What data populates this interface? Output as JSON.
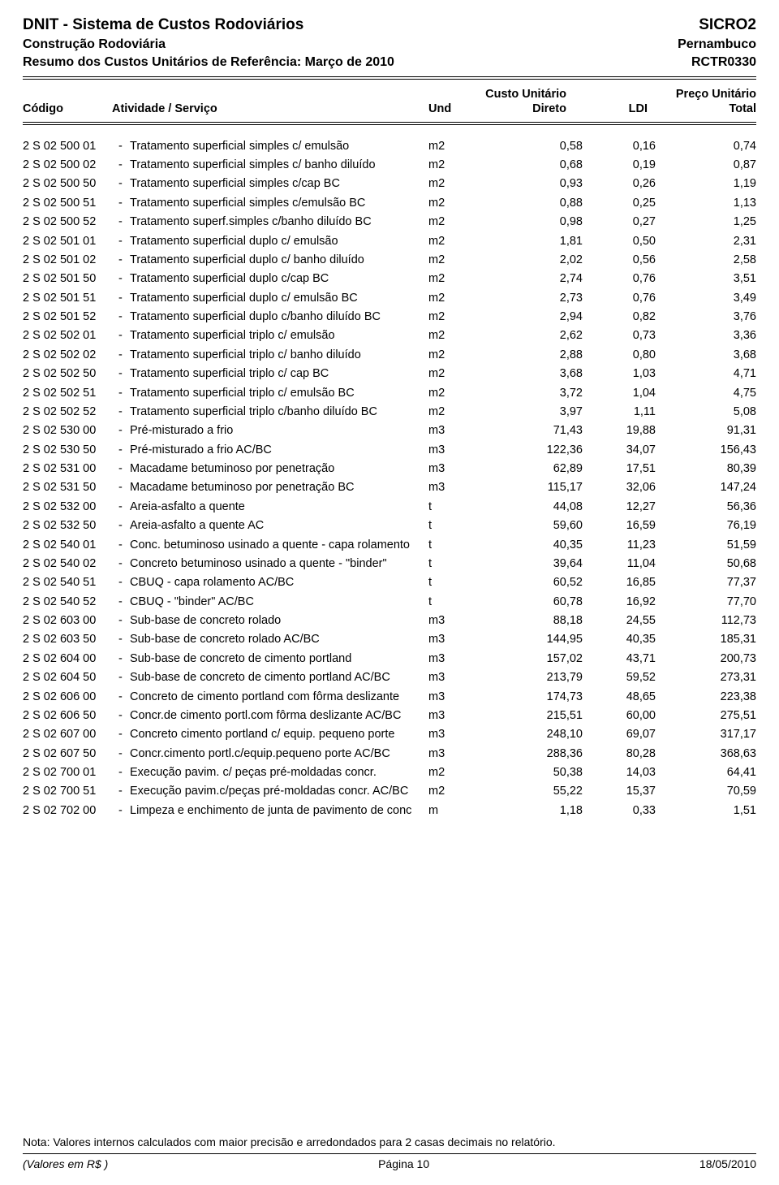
{
  "header": {
    "title_left": "DNIT - Sistema de Custos Rodoviários",
    "title_right": "SICRO2",
    "sub1_left": "Construção Rodoviária",
    "sub1_right": "Pernambuco",
    "sub2_left": "Resumo dos Custos Unitários de Referência: Março de 2010",
    "sub2_right": "RCTR0330"
  },
  "columns": {
    "custo_unitario": "Custo Unitário",
    "preco_unitario": "Preço Unitário",
    "codigo": "Código",
    "atividade": "Atividade / Serviço",
    "und": "Und",
    "direto": "Direto",
    "ldi": "LDI",
    "total": "Total"
  },
  "rows": [
    {
      "codigo": "2 S 02 500 01",
      "desc": "Tratamento superficial simples c/ emulsão",
      "und": "m2",
      "direto": "0,58",
      "ldi": "0,16",
      "total": "0,74"
    },
    {
      "codigo": "2 S 02 500 02",
      "desc": "Tratamento superficial simples c/ banho diluído",
      "und": "m2",
      "direto": "0,68",
      "ldi": "0,19",
      "total": "0,87"
    },
    {
      "codigo": "2 S 02 500 50",
      "desc": "Tratamento superficial simples c/cap BC",
      "und": "m2",
      "direto": "0,93",
      "ldi": "0,26",
      "total": "1,19"
    },
    {
      "codigo": "2 S 02 500 51",
      "desc": "Tratamento superficial simples c/emulsão BC",
      "und": "m2",
      "direto": "0,88",
      "ldi": "0,25",
      "total": "1,13"
    },
    {
      "codigo": "2 S 02 500 52",
      "desc": "Tratamento superf.simples c/banho diluído BC",
      "und": "m2",
      "direto": "0,98",
      "ldi": "0,27",
      "total": "1,25"
    },
    {
      "codigo": "2 S 02 501 01",
      "desc": "Tratamento superficial duplo c/ emulsão",
      "und": "m2",
      "direto": "1,81",
      "ldi": "0,50",
      "total": "2,31"
    },
    {
      "codigo": "2 S 02 501 02",
      "desc": "Tratamento superficial duplo c/ banho diluído",
      "und": "m2",
      "direto": "2,02",
      "ldi": "0,56",
      "total": "2,58"
    },
    {
      "codigo": "2 S 02 501 50",
      "desc": "Tratamento superficial duplo c/cap BC",
      "und": "m2",
      "direto": "2,74",
      "ldi": "0,76",
      "total": "3,51"
    },
    {
      "codigo": "2 S 02 501 51",
      "desc": "Tratamento superficial duplo c/ emulsão BC",
      "und": "m2",
      "direto": "2,73",
      "ldi": "0,76",
      "total": "3,49"
    },
    {
      "codigo": "2 S 02 501 52",
      "desc": "Tratamento superficial duplo c/banho diluído BC",
      "und": "m2",
      "direto": "2,94",
      "ldi": "0,82",
      "total": "3,76"
    },
    {
      "codigo": "2 S 02 502 01",
      "desc": "Tratamento superficial triplo c/ emulsão",
      "und": "m2",
      "direto": "2,62",
      "ldi": "0,73",
      "total": "3,36"
    },
    {
      "codigo": "2 S 02 502 02",
      "desc": "Tratamento superficial triplo c/ banho diluído",
      "und": "m2",
      "direto": "2,88",
      "ldi": "0,80",
      "total": "3,68"
    },
    {
      "codigo": "2 S 02 502 50",
      "desc": "Tratamento superficial triplo c/ cap BC",
      "und": "m2",
      "direto": "3,68",
      "ldi": "1,03",
      "total": "4,71"
    },
    {
      "codigo": "2 S 02 502 51",
      "desc": "Tratamento superficial triplo c/ emulsão BC",
      "und": "m2",
      "direto": "3,72",
      "ldi": "1,04",
      "total": "4,75"
    },
    {
      "codigo": "2 S 02 502 52",
      "desc": "Tratamento superficial triplo c/banho diluído BC",
      "und": "m2",
      "direto": "3,97",
      "ldi": "1,11",
      "total": "5,08"
    },
    {
      "codigo": "2 S 02 530 00",
      "desc": "Pré-misturado a frio",
      "und": "m3",
      "direto": "71,43",
      "ldi": "19,88",
      "total": "91,31"
    },
    {
      "codigo": "2 S 02 530 50",
      "desc": "Pré-misturado a frio AC/BC",
      "und": "m3",
      "direto": "122,36",
      "ldi": "34,07",
      "total": "156,43"
    },
    {
      "codigo": "2 S 02 531 00",
      "desc": "Macadame betuminoso por penetração",
      "und": "m3",
      "direto": "62,89",
      "ldi": "17,51",
      "total": "80,39"
    },
    {
      "codigo": "2 S 02 531 50",
      "desc": "Macadame betuminoso por penetração BC",
      "und": "m3",
      "direto": "115,17",
      "ldi": "32,06",
      "total": "147,24"
    },
    {
      "codigo": "2 S 02 532 00",
      "desc": "Areia-asfalto a quente",
      "und": "t",
      "direto": "44,08",
      "ldi": "12,27",
      "total": "56,36"
    },
    {
      "codigo": "2 S 02 532 50",
      "desc": "Areia-asfalto a quente AC",
      "und": "t",
      "direto": "59,60",
      "ldi": "16,59",
      "total": "76,19"
    },
    {
      "codigo": "2 S 02 540 01",
      "desc": "Conc. betuminoso usinado a quente - capa rolamento",
      "und": "t",
      "direto": "40,35",
      "ldi": "11,23",
      "total": "51,59"
    },
    {
      "codigo": "2 S 02 540 02",
      "desc": "Concreto betuminoso usinado a quente - \"binder\"",
      "und": "t",
      "direto": "39,64",
      "ldi": "11,04",
      "total": "50,68"
    },
    {
      "codigo": "2 S 02 540 51",
      "desc": "CBUQ - capa rolamento AC/BC",
      "und": "t",
      "direto": "60,52",
      "ldi": "16,85",
      "total": "77,37"
    },
    {
      "codigo": "2 S 02 540 52",
      "desc": "CBUQ - \"binder\" AC/BC",
      "und": "t",
      "direto": "60,78",
      "ldi": "16,92",
      "total": "77,70"
    },
    {
      "codigo": "2 S 02 603 00",
      "desc": "Sub-base de concreto rolado",
      "und": "m3",
      "direto": "88,18",
      "ldi": "24,55",
      "total": "112,73"
    },
    {
      "codigo": "2 S 02 603 50",
      "desc": "Sub-base de concreto rolado AC/BC",
      "und": "m3",
      "direto": "144,95",
      "ldi": "40,35",
      "total": "185,31"
    },
    {
      "codigo": "2 S 02 604 00",
      "desc": "Sub-base de concreto de cimento portland",
      "und": "m3",
      "direto": "157,02",
      "ldi": "43,71",
      "total": "200,73"
    },
    {
      "codigo": "2 S 02 604 50",
      "desc": "Sub-base de concreto de cimento portland AC/BC",
      "und": "m3",
      "direto": "213,79",
      "ldi": "59,52",
      "total": "273,31"
    },
    {
      "codigo": "2 S 02 606 00",
      "desc": "Concreto de cimento portland com fôrma deslizante",
      "und": "m3",
      "direto": "174,73",
      "ldi": "48,65",
      "total": "223,38"
    },
    {
      "codigo": "2 S 02 606 50",
      "desc": "Concr.de cimento portl.com fôrma deslizante AC/BC",
      "und": "m3",
      "direto": "215,51",
      "ldi": "60,00",
      "total": "275,51"
    },
    {
      "codigo": "2 S 02 607 00",
      "desc": "Concreto cimento portland c/ equip. pequeno porte",
      "und": "m3",
      "direto": "248,10",
      "ldi": "69,07",
      "total": "317,17"
    },
    {
      "codigo": "2 S 02 607 50",
      "desc": "Concr.cimento portl.c/equip.pequeno porte AC/BC",
      "und": "m3",
      "direto": "288,36",
      "ldi": "80,28",
      "total": "368,63"
    },
    {
      "codigo": "2 S 02 700 01",
      "desc": "Execução pavim. c/ peças pré-moldadas concr.",
      "und": "m2",
      "direto": "50,38",
      "ldi": "14,03",
      "total": "64,41"
    },
    {
      "codigo": "2 S 02 700 51",
      "desc": "Execução pavim.c/peças pré-moldadas concr. AC/BC",
      "und": "m2",
      "direto": "55,22",
      "ldi": "15,37",
      "total": "70,59"
    },
    {
      "codigo": "2 S 02 702 00",
      "desc": "Limpeza e enchimento de junta de pavimento de conc",
      "und": "m",
      "direto": "1,18",
      "ldi": "0,33",
      "total": "1,51"
    }
  ],
  "footer": {
    "note": "Nota: Valores internos calculados com maior precisão e arredondados para 2 casas decimais no relatório.",
    "values_label": "(Valores em R$ )",
    "page_label": "Página 10",
    "date": "18/05/2010"
  }
}
